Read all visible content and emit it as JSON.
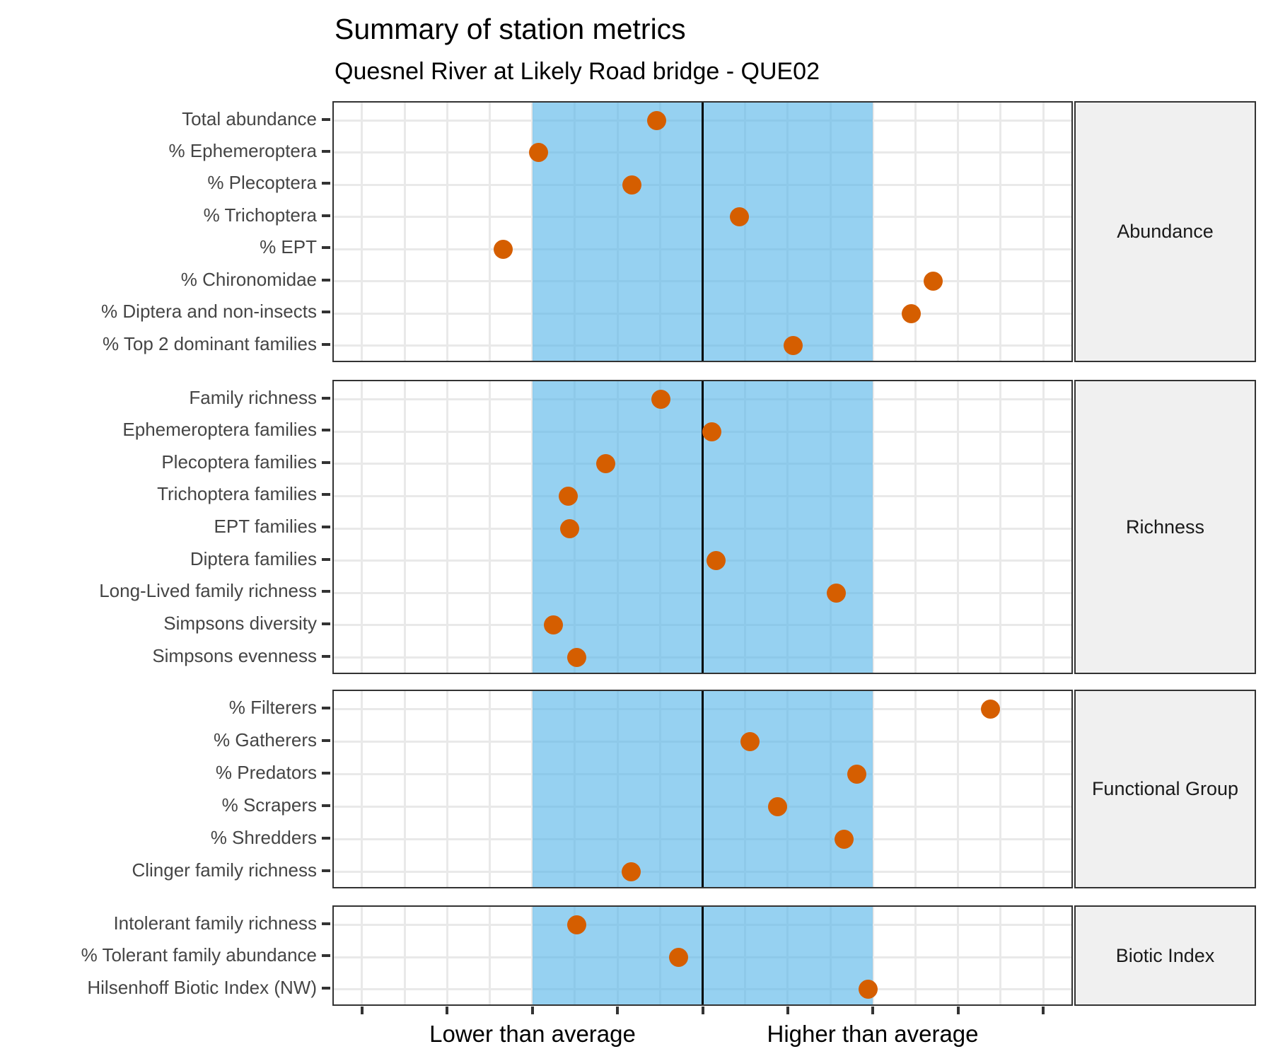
{
  "title": "Summary of station metrics",
  "subtitle": "Quesnel River at Likely Road bridge - QUE02",
  "x_axis_labels": {
    "lower": "Lower than average",
    "higher": "Higher than average"
  },
  "colors": {
    "point": "#D55E00",
    "band_base": "#56B4E9",
    "band_opacity": 0.62,
    "center_line": "#000000",
    "grid": "#e9e9e9",
    "panel_border": "#333333",
    "strip_background": "#f0f0f0",
    "axis_text": "#454545"
  },
  "chart_data": {
    "type": "scatter",
    "subtype": "faceted-horizontal-dot-plot",
    "title": "Summary of station metrics",
    "subtitle": "Quesnel River at Likely Road bridge - QUE02",
    "xlabel_left": "Lower than average",
    "xlabel_right": "Higher than average",
    "x_units": "standardized departure from average (0 = average)",
    "xlim": [
      -4.35,
      4.35
    ],
    "x_ticks": [
      -4,
      -3,
      -2,
      -1,
      0,
      1,
      2,
      3,
      4
    ],
    "x_tick_labels": [
      "",
      "",
      "",
      "",
      "",
      "",
      "",
      "",
      ""
    ],
    "minor_grid_step": 0.5,
    "grid": true,
    "reference_band": {
      "from": -2,
      "to": 2
    },
    "center_line_x": 0,
    "panels": [
      {
        "facet": "Abundance",
        "metrics": [
          "Total abundance",
          "% Ephemeroptera",
          "% Plecoptera",
          "% Trichoptera",
          "% EPT",
          "% Chironomidae",
          "% Diptera and non-insects",
          "% Top 2 dominant families"
        ],
        "values": [
          -0.54,
          -1.93,
          -0.83,
          0.43,
          -2.34,
          2.71,
          2.45,
          1.06
        ]
      },
      {
        "facet": "Richness",
        "metrics": [
          "Family richness",
          "Ephemeroptera families",
          "Plecoptera families",
          "Trichoptera families",
          "EPT families",
          "Diptera families",
          "Long-Lived family richness",
          "Simpsons diversity",
          "Simpsons evenness"
        ],
        "values": [
          -0.49,
          0.11,
          -1.14,
          -1.58,
          -1.56,
          0.16,
          1.57,
          -1.75,
          -1.48
        ]
      },
      {
        "facet": "Functional Group",
        "metrics": [
          "% Filterers",
          "% Gatherers",
          "% Predators",
          "% Scrapers",
          "% Shredders",
          "Clinger family richness"
        ],
        "values": [
          3.38,
          0.56,
          1.81,
          0.88,
          1.66,
          -0.84
        ]
      },
      {
        "facet": "Biotic Index",
        "metrics": [
          "Intolerant family richness",
          "% Tolerant family abundance",
          "Hilsenhoff Biotic Index (NW)"
        ],
        "values": [
          -1.48,
          -0.28,
          1.94
        ]
      }
    ]
  }
}
